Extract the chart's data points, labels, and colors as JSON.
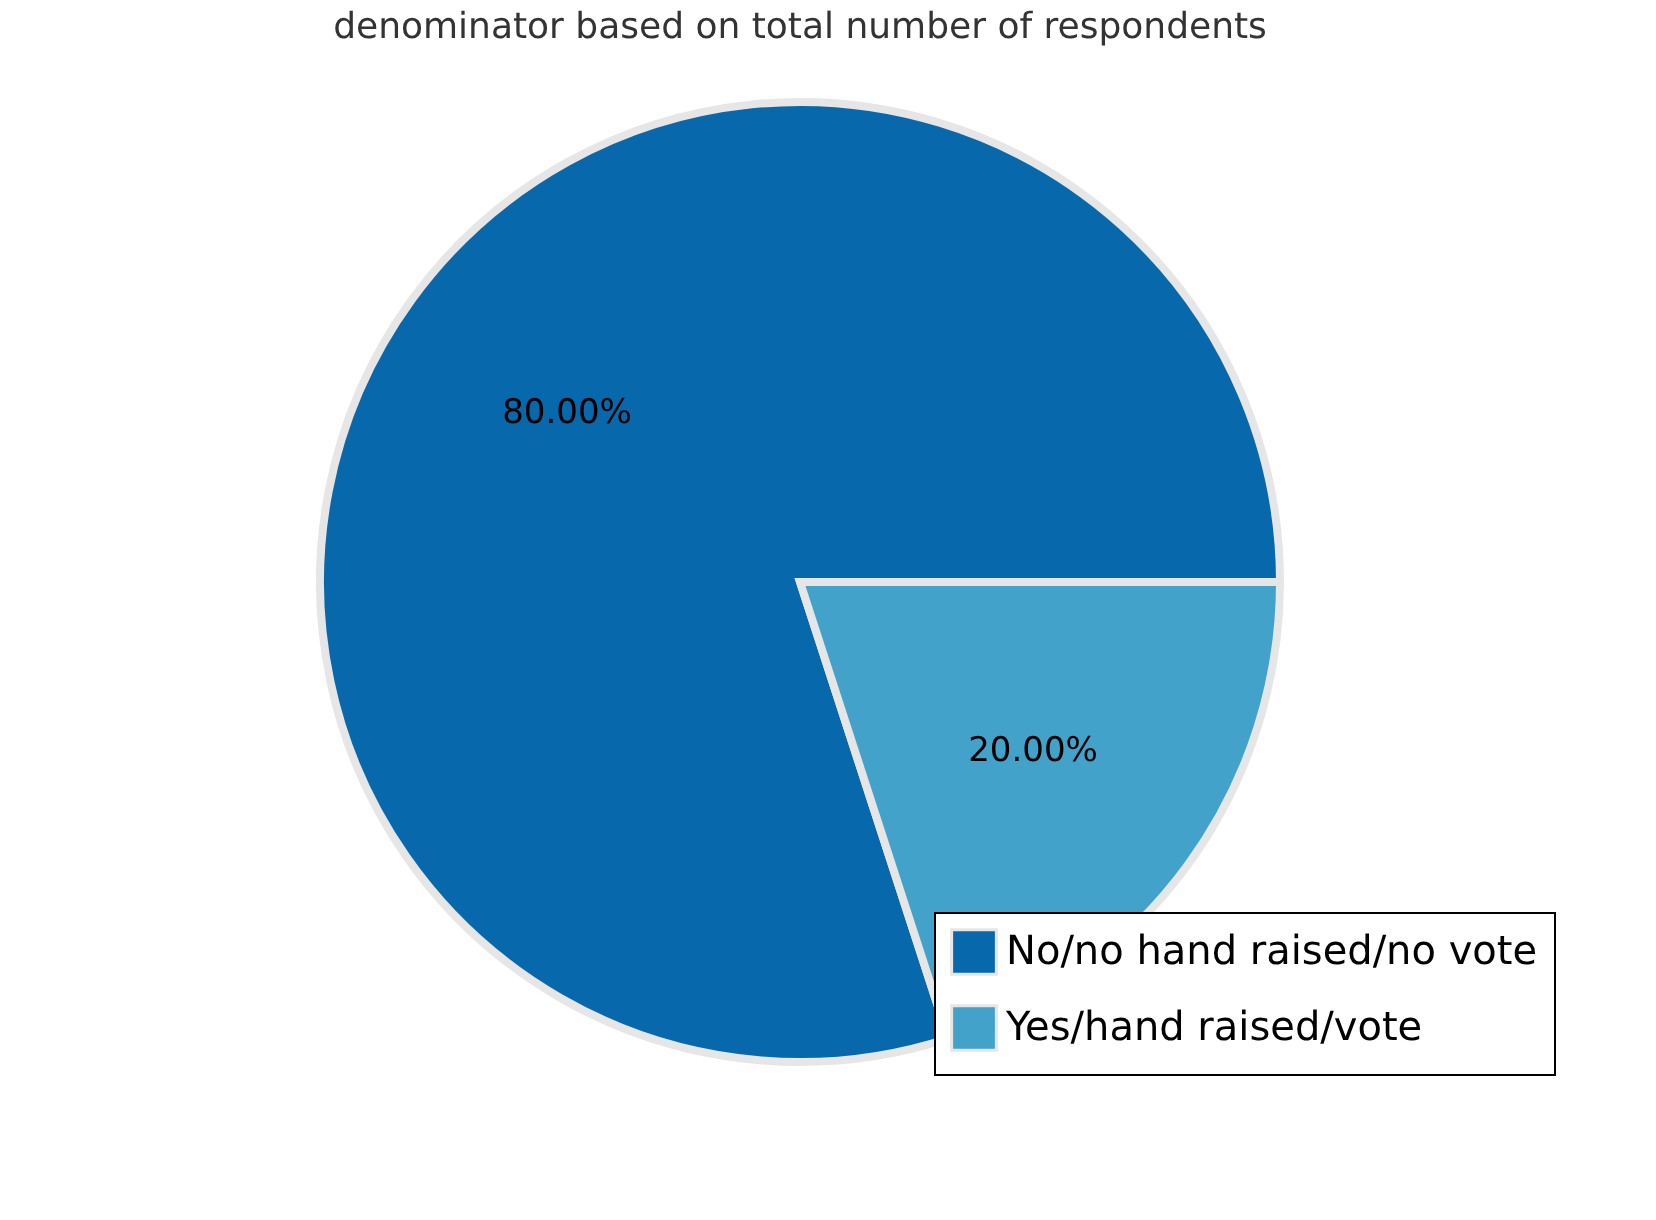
{
  "chart_data": {
    "type": "pie",
    "title": "denominator based on total number of respondents",
    "categories": [
      "No/no hand raised/no vote",
      "Yes/hand raised/vote"
    ],
    "values": [
      80,
      20
    ],
    "colors": [
      "#0868ac",
      "#43a2ca"
    ],
    "value_labels": [
      "80.00%",
      "20.00%"
    ],
    "legend": "bottom right"
  }
}
